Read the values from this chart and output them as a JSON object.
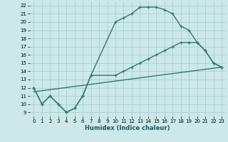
{
  "xlabel": "Humidex (Indice chaleur)",
  "bg_color": "#cce8e8",
  "grid_color": "#aad0d0",
  "line_color": "#2d7b6f",
  "xlim": [
    -0.5,
    23.5
  ],
  "ylim": [
    8.5,
    22.5
  ],
  "xticks": [
    0,
    1,
    2,
    3,
    4,
    5,
    6,
    7,
    8,
    9,
    10,
    11,
    12,
    13,
    14,
    15,
    16,
    17,
    18,
    19,
    20,
    21,
    22,
    23
  ],
  "yticks": [
    9,
    10,
    11,
    12,
    13,
    14,
    15,
    16,
    17,
    18,
    19,
    20,
    21,
    22
  ],
  "line1_x": [
    0,
    1,
    2,
    3,
    4,
    5,
    6,
    7,
    10,
    11,
    12,
    13,
    14,
    15,
    16,
    17,
    18,
    19,
    20,
    21,
    22,
    23
  ],
  "line1_y": [
    12,
    10,
    11,
    10,
    9,
    9.5,
    11,
    13.5,
    20,
    20.5,
    21,
    21.8,
    21.8,
    21.8,
    21.5,
    21.0,
    19.5,
    19,
    17.5,
    16.5,
    15,
    14.5
  ],
  "line2_x": [
    0,
    1,
    2,
    3,
    4,
    5,
    6,
    7,
    10,
    11,
    12,
    13,
    14,
    15,
    16,
    17,
    18,
    19,
    20,
    21,
    22,
    23
  ],
  "line2_y": [
    12,
    10,
    11,
    10,
    9,
    9.5,
    11,
    13.5,
    13.5,
    14,
    14.5,
    15,
    15.5,
    16,
    16.5,
    17,
    17.5,
    17.5,
    17.5,
    16.5,
    15,
    14.5
  ],
  "line3_x": [
    0,
    23
  ],
  "line3_y": [
    11.5,
    14.5
  ]
}
